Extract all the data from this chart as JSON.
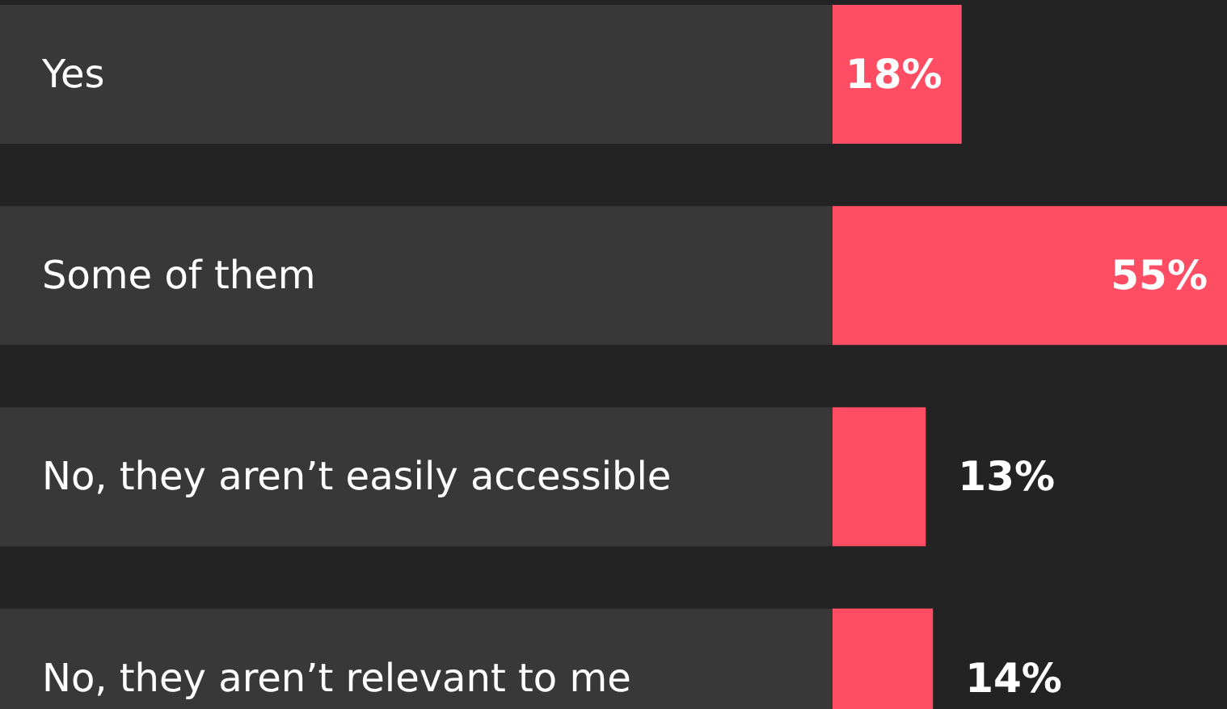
{
  "chart_data": {
    "type": "bar",
    "orientation": "horizontal",
    "categories": [
      "Yes",
      "Some of them",
      "No, they aren’t easily accessible",
      "No, they aren’t relevant to me"
    ],
    "values": [
      18,
      55,
      13,
      14
    ],
    "value_labels": [
      "18%",
      "55%",
      "13%",
      "14%"
    ],
    "color": "#ff4d63"
  }
}
